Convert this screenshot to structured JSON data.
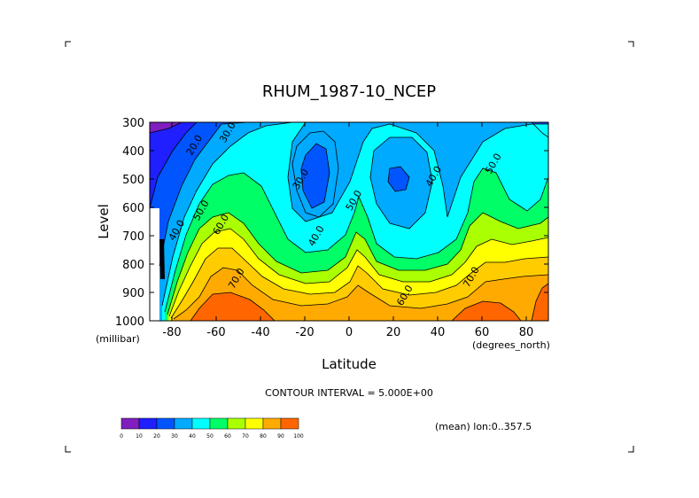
{
  "chart_data": {
    "type": "contour",
    "title": "RHUM_1987-10_NCEP",
    "xlabel": "Latitude",
    "ylabel": "Level",
    "x_unit_label": "(degrees_north)",
    "y_unit_label": "(millibar)",
    "xlim": [
      -90,
      90
    ],
    "ylim": [
      1000,
      300
    ],
    "x_ticks": [
      -80,
      -60,
      -40,
      -20,
      0,
      20,
      40,
      60,
      80
    ],
    "y_ticks": [
      300,
      400,
      500,
      600,
      700,
      800,
      900,
      1000
    ],
    "contour_interval_text": "CONTOUR INTERVAL = 5.000E+00",
    "footnote": "(mean) lon:0..357.5",
    "colorbar": {
      "labels": [
        "0",
        "10",
        "20",
        "30",
        "40",
        "50",
        "60",
        "70",
        "80",
        "90",
        "100"
      ],
      "colors": [
        "#7f1fbf",
        "#1f1fff",
        "#0055ff",
        "#00aaff",
        "#00ffff",
        "#00ff66",
        "#aaff00",
        "#ffff00",
        "#ffaa00",
        "#ff6600",
        "#ff0000"
      ]
    },
    "contour_labels": [
      {
        "text": "20.0",
        "lat": -70,
        "p": 380
      },
      {
        "text": "30.0",
        "lat": -55,
        "p": 335
      },
      {
        "text": "30.0",
        "lat": -22,
        "p": 500
      },
      {
        "text": "40.0",
        "lat": 38,
        "p": 490
      },
      {
        "text": "50.0",
        "lat": 65,
        "p": 445
      },
      {
        "text": "50.0",
        "lat": 2,
        "p": 575
      },
      {
        "text": "40.0",
        "lat": -78,
        "p": 680
      },
      {
        "text": "50.0",
        "lat": -67,
        "p": 610
      },
      {
        "text": "60.0",
        "lat": -58,
        "p": 660
      },
      {
        "text": "40.0",
        "lat": -15,
        "p": 700
      },
      {
        "text": "70.0",
        "lat": -51,
        "p": 850
      },
      {
        "text": "60.0",
        "lat": 25,
        "p": 910
      },
      {
        "text": "70.0",
        "lat": 55,
        "p": 845
      }
    ],
    "zones": [
      {
        "level": 0,
        "color": "#7f1fbf"
      },
      {
        "level": 10,
        "color": "#1f1fff"
      },
      {
        "level": 20,
        "color": "#0055ff"
      },
      {
        "level": 30,
        "color": "#00aaff"
      },
      {
        "level": 40,
        "color": "#00ffff"
      },
      {
        "level": 50,
        "color": "#00ff66"
      },
      {
        "level": 60,
        "color": "#aaff00"
      },
      {
        "level": 65,
        "color": "#ffff00"
      },
      {
        "level": 70,
        "color": "#ffcc00"
      },
      {
        "level": 75,
        "color": "#ffaa00"
      },
      {
        "level": 80,
        "color": "#ff6600"
      }
    ]
  }
}
